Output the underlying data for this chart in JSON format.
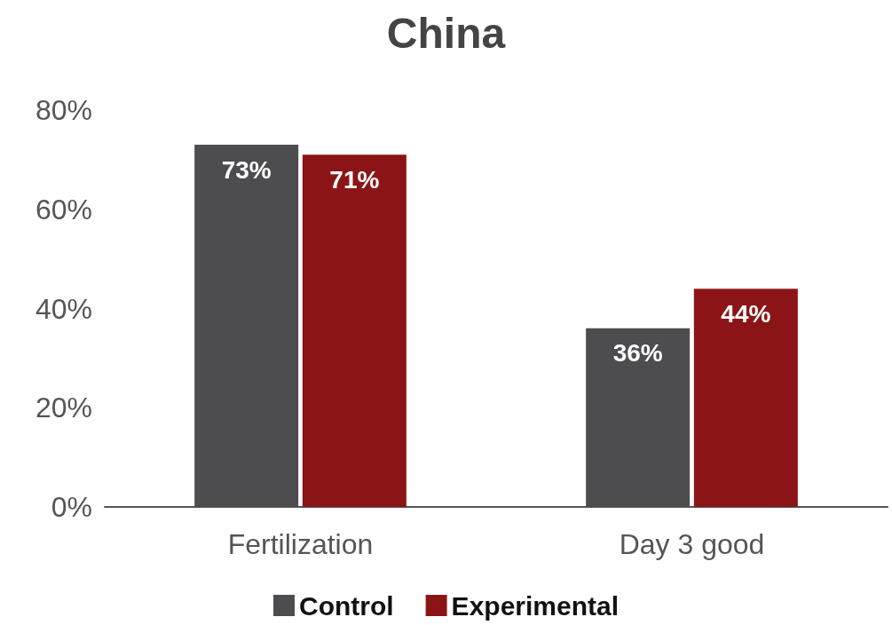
{
  "chart_data": {
    "type": "bar",
    "title": "China",
    "categories": [
      "Fertilization",
      "Day 3 good"
    ],
    "series": [
      {
        "name": "Control",
        "color": "#4d4d50",
        "values": [
          73,
          36
        ],
        "value_labels": [
          "73%",
          "36%"
        ]
      },
      {
        "name": "Experimental",
        "color": "#8b1516",
        "values": [
          71,
          44
        ],
        "value_labels": [
          "71%",
          "44%"
        ]
      }
    ],
    "ylim": [
      0,
      80
    ],
    "yticks": [
      {
        "value": 0,
        "label": "0%"
      },
      {
        "value": 20,
        "label": "20%"
      },
      {
        "value": 40,
        "label": "40%"
      },
      {
        "value": 60,
        "label": "60%"
      },
      {
        "value": 80,
        "label": "80%"
      }
    ],
    "grid": false,
    "legend": "bottom"
  }
}
